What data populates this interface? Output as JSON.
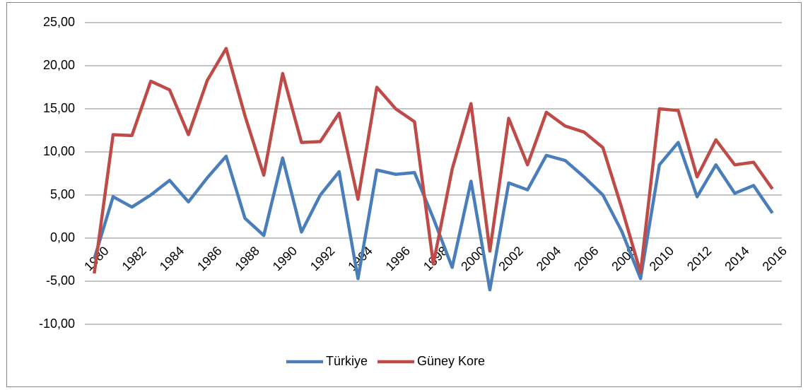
{
  "chart_data": {
    "type": "line",
    "categories": [
      "1980",
      null,
      "1982",
      null,
      "1984",
      null,
      "1986",
      null,
      "1988",
      null,
      "1990",
      null,
      "1992",
      null,
      "1994",
      null,
      "1996",
      null,
      "1998",
      null,
      "2000",
      null,
      "2002",
      null,
      "2004",
      null,
      "2006",
      null,
      "2008",
      null,
      "2010",
      null,
      "2012",
      null,
      "2014",
      null,
      "2016"
    ],
    "series": [
      {
        "name": "Türkiye",
        "color": "#4a7ebb",
        "values": [
          -2.4,
          4.8,
          3.6,
          5.0,
          6.7,
          4.2,
          7.0,
          9.5,
          2.3,
          0.3,
          9.3,
          0.7,
          5.0,
          7.7,
          -4.7,
          7.9,
          7.4,
          7.6,
          2.3,
          -3.4,
          6.6,
          -6.0,
          6.4,
          5.6,
          9.6,
          9.0,
          7.1,
          5.0,
          0.8,
          -4.7,
          8.5,
          11.1,
          4.8,
          8.5,
          5.2,
          6.1,
          2.9
        ]
      },
      {
        "name": "Güney Kore",
        "color": "#be4b48",
        "values": [
          -4.1,
          12.0,
          11.9,
          18.2,
          17.2,
          12.0,
          18.3,
          22.0,
          14.2,
          7.3,
          19.1,
          11.1,
          11.2,
          14.5,
          4.5,
          17.5,
          15.0,
          13.5,
          -3.0,
          8.0,
          15.6,
          -1.5,
          13.9,
          8.5,
          14.6,
          13.0,
          12.3,
          10.5,
          3.5,
          -4.0,
          15.0,
          14.8,
          7.1,
          11.4,
          8.5,
          8.8,
          5.7
        ]
      }
    ],
    "ylim": [
      -10,
      25
    ],
    "yticks": [
      {
        "value": -10,
        "label": "-10,00"
      },
      {
        "value": -5,
        "label": "-5,00"
      },
      {
        "value": 0,
        "label": "0,00"
      },
      {
        "value": 5,
        "label": "5,00"
      },
      {
        "value": 10,
        "label": "10,00"
      },
      {
        "value": 15,
        "label": "15,00"
      },
      {
        "value": 20,
        "label": "20,00"
      },
      {
        "value": 25,
        "label": "25,00"
      }
    ],
    "grid": true,
    "legend": "bottom"
  }
}
